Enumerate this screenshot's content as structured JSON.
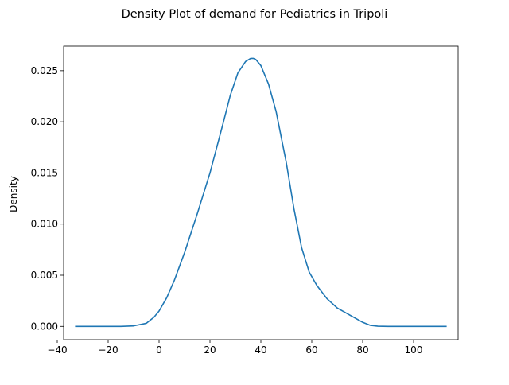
{
  "chart_data": {
    "type": "line",
    "title": "Density Plot of demand for Pediatrics in Tripoli",
    "xlabel": "",
    "ylabel": "Density",
    "xlim": [
      -37.5,
      117.5
    ],
    "ylim": [
      -0.0013,
      0.0274
    ],
    "x_ticks": [
      -40,
      -20,
      0,
      20,
      40,
      60,
      80,
      100
    ],
    "x_tick_labels": [
      "−40",
      "−20",
      "0",
      "20",
      "40",
      "60",
      "80",
      "100"
    ],
    "y_ticks": [
      0.0,
      0.005,
      0.01,
      0.015,
      0.02,
      0.025
    ],
    "y_tick_labels": [
      "0.000",
      "0.005",
      "0.010",
      "0.015",
      "0.020",
      "0.025"
    ],
    "grid": false,
    "legend": "none",
    "series": [
      {
        "color": "#1f77b4",
        "x": [
          -33,
          -25,
          -15,
          -10,
          -5,
          -2,
          0,
          3,
          6,
          10,
          15,
          20,
          25,
          28,
          31,
          34,
          36,
          37,
          38,
          40,
          43,
          46,
          50,
          53,
          56,
          59,
          62,
          66,
          70,
          75,
          80,
          83,
          86,
          90,
          95,
          100,
          105,
          113
        ],
        "y": [
          0.0,
          0.0,
          0.0,
          5e-05,
          0.0003,
          0.0009,
          0.0015,
          0.0028,
          0.0045,
          0.0072,
          0.011,
          0.015,
          0.0197,
          0.0226,
          0.0248,
          0.0259,
          0.0262,
          0.0262,
          0.0261,
          0.0255,
          0.0237,
          0.021,
          0.016,
          0.0115,
          0.0077,
          0.0053,
          0.004,
          0.0027,
          0.0018,
          0.0011,
          0.0004,
          0.0001,
          2e-05,
          0.0,
          0.0,
          0.0,
          0.0,
          0.0
        ]
      }
    ]
  }
}
